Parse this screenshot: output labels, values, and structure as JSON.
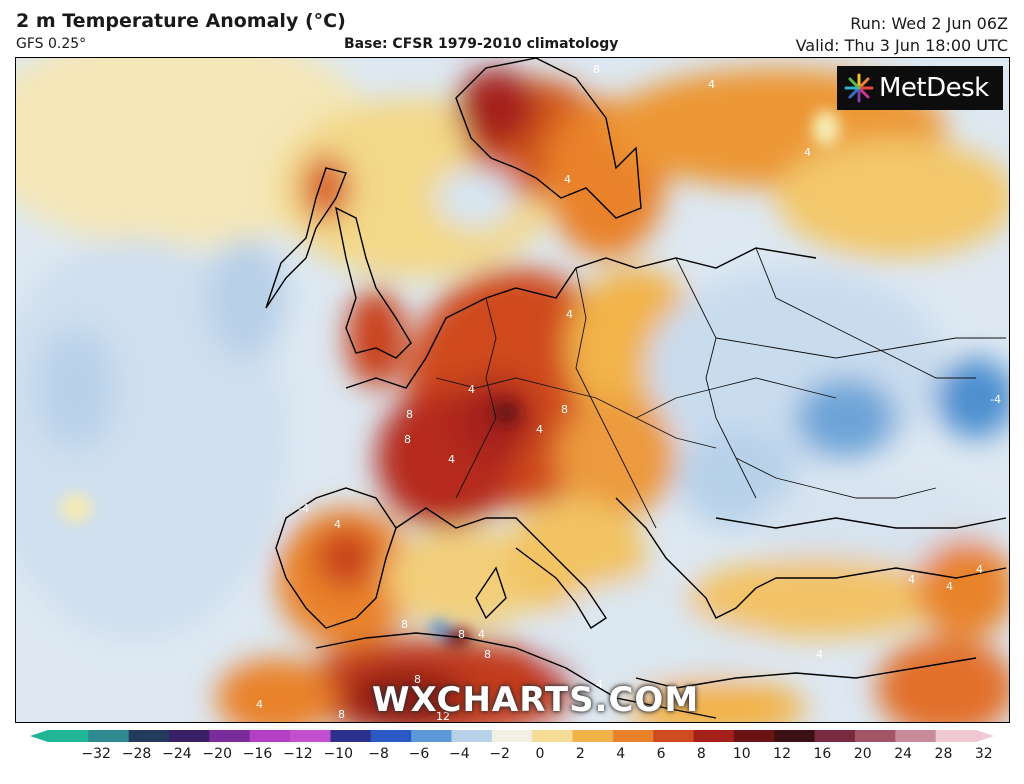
{
  "header": {
    "title": "2 m Temperature Anomaly (°C)",
    "model": "GFS 0.25°",
    "base": "Base: CFSR 1979-2010 climatology",
    "run": "Run: Wed 2 Jun 06Z",
    "valid": "Valid: Thu 3 Jun 18:00 UTC"
  },
  "logo": {
    "text": "MetDesk",
    "icon": "metdesk-flower-icon"
  },
  "watermark": "WXCHARTS.COM",
  "map": {
    "region": "Europe",
    "contour_labels": [
      "8",
      "4",
      "4",
      "4",
      "4",
      "8",
      "8",
      "4",
      "4",
      "-4",
      "8",
      "4",
      "4",
      "8",
      "4",
      "8",
      "8",
      "4",
      "4",
      "4",
      "8",
      "8",
      "4",
      "-4",
      "4",
      "4",
      "12"
    ]
  },
  "legend": {
    "ticks": [
      "−32",
      "−28",
      "−24",
      "−20",
      "−16",
      "−12",
      "−10",
      "−8",
      "−6",
      "−4",
      "−2",
      "0",
      "2",
      "4",
      "6",
      "8",
      "10",
      "12",
      "16",
      "20",
      "24",
      "28",
      "32"
    ],
    "colors": [
      "#1fb597",
      "#2f8a8f",
      "#233a5e",
      "#3a1f66",
      "#7a2c9c",
      "#b23fc4",
      "#c24fd0",
      "#2c2f8c",
      "#2a58c4",
      "#5b9ad6",
      "#b8d2ea",
      "#f2efe4",
      "#f4dc96",
      "#f2b34a",
      "#e9822b",
      "#cf4a1c",
      "#a5201a",
      "#6b1214",
      "#3c0f14",
      "#7a2a3e",
      "#a25366",
      "#c98a9a",
      "#f0c9d2"
    ]
  }
}
